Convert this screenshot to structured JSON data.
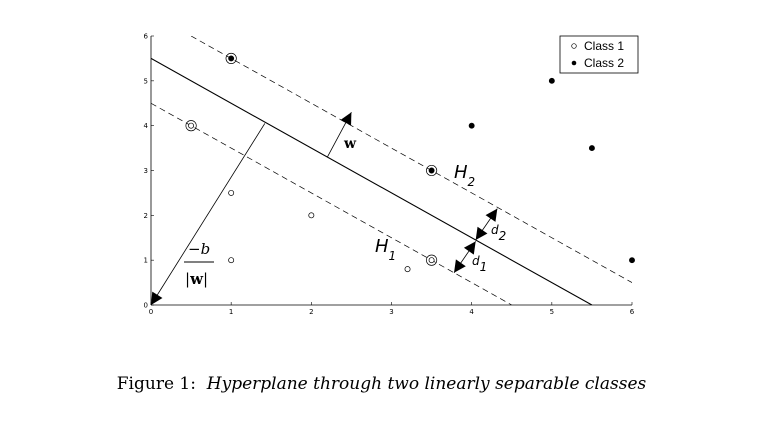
{
  "chart_data": {
    "type": "scatter",
    "xlim": [
      0,
      6
    ],
    "ylim": [
      0,
      6
    ],
    "xticks": [
      "0",
      "1",
      "2",
      "3",
      "4",
      "5",
      "6"
    ],
    "yticks": [
      "0",
      "1",
      "2",
      "3",
      "4",
      "5",
      "6"
    ],
    "grid": false,
    "legend_position": "top-right",
    "series": [
      {
        "name": "Class 1",
        "marker": "open-circle",
        "points": [
          [
            0.5,
            4.0
          ],
          [
            1,
            2.5
          ],
          [
            1,
            1
          ],
          [
            2,
            2
          ],
          [
            3.2,
            0.8
          ],
          [
            3.5,
            1.0
          ]
        ]
      },
      {
        "name": "Class 2",
        "marker": "filled-circle",
        "points": [
          [
            1,
            5.5
          ],
          [
            3.5,
            3.0
          ],
          [
            4,
            4.0
          ],
          [
            5,
            5.0
          ],
          [
            5.5,
            3.5
          ],
          [
            6,
            1.0
          ]
        ]
      }
    ],
    "support_vectors": [
      [
        0.5,
        4.0
      ],
      [
        3.5,
        1.0
      ],
      [
        1,
        5.5
      ],
      [
        3.5,
        3.0
      ]
    ],
    "hyperplane": {
      "x_intercept": 5.5,
      "y_intercept": 5.5,
      "style": "solid"
    },
    "margin_H1": {
      "x_intercept": 4.5,
      "y_intercept": 4.5,
      "style": "dashed"
    },
    "margin_H2": {
      "x_intercept": 6.5,
      "y_intercept": 6.5,
      "style": "dashed"
    }
  },
  "annotations": {
    "H1": "H",
    "H1_sub": "1",
    "H2": "H",
    "H2_sub": "2",
    "d1": "d",
    "d1_sub": "1",
    "d2": "d",
    "d2_sub": "2",
    "w": "w",
    "frac_num": "−b",
    "frac_den_bar": "|",
    "frac_den_w": "w"
  },
  "caption": {
    "label": "Figure 1:",
    "text": "Hyperplane through two linearly separable classes"
  }
}
